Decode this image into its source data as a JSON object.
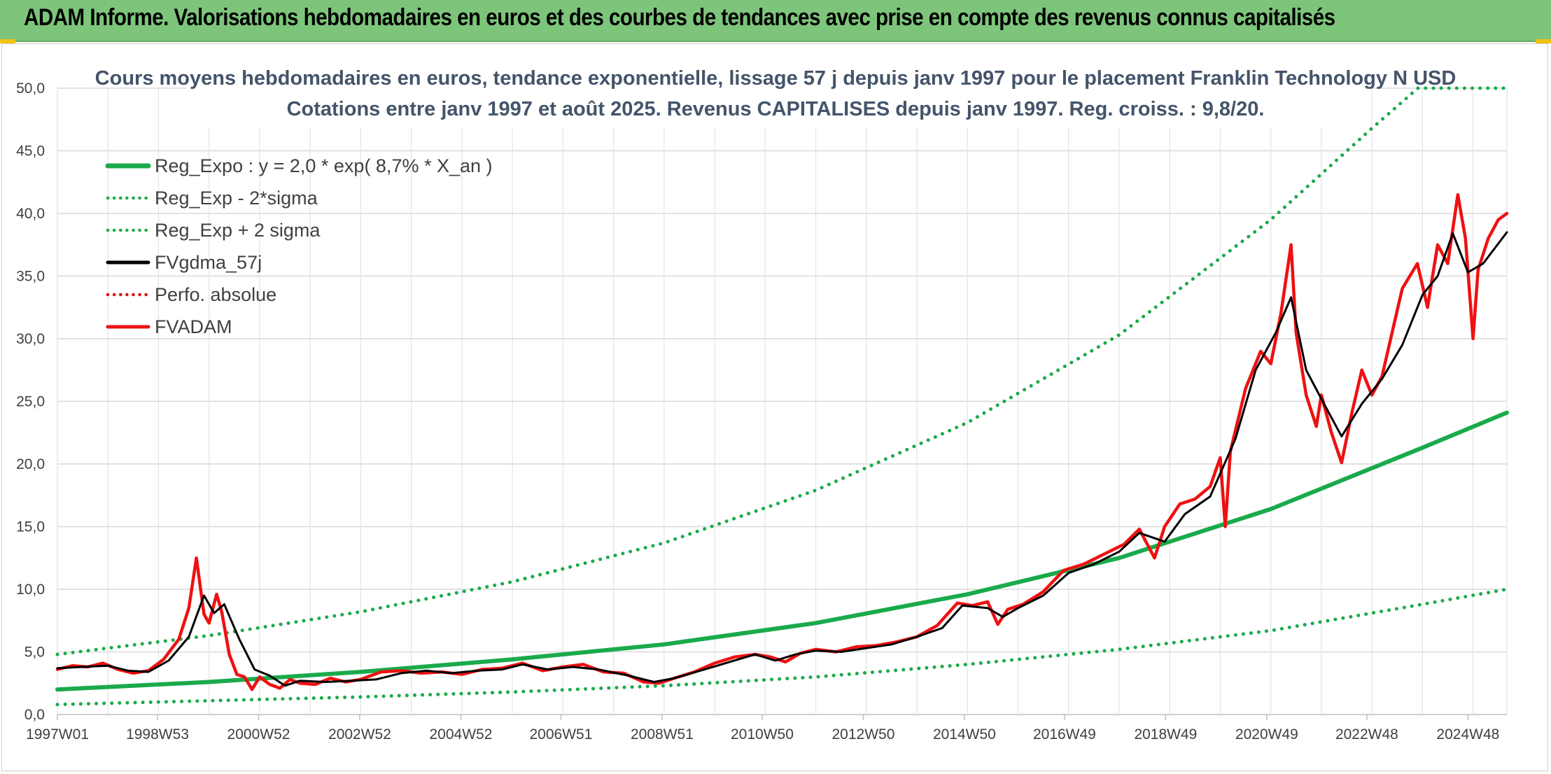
{
  "header": {
    "title": "ADAM Informe. Valorisations hebdomadaires en euros et des courbes de tendances avec prise en compte des revenus connus capitalisés"
  },
  "chart_data": {
    "type": "line",
    "title": "Cours moyens hebdomadaires en euros, tendance exponentielle, lissage 57 j depuis janv 1997 pour le placement Franklin Technology N USD",
    "subtitle": "Cotations entre janv 1997 et août 2025. Revenus CAPITALISES depuis janv 1997. Reg. croiss. : 9,8/20.",
    "xlabel": "",
    "ylabel": "",
    "ylim": [
      0,
      50
    ],
    "xlim": [
      1997.0,
      2025.67
    ],
    "y_ticks": [
      "0,0",
      "5,0",
      "10,0",
      "15,0",
      "20,0",
      "25,0",
      "30,0",
      "35,0",
      "40,0",
      "45,0",
      "50,0"
    ],
    "x_ticks": [
      {
        "label": "1997W01",
        "x": 1997.0
      },
      {
        "label": "1998W53",
        "x": 1998.98
      },
      {
        "label": "2000W52",
        "x": 2000.98
      },
      {
        "label": "2002W52",
        "x": 2002.98
      },
      {
        "label": "2004W52",
        "x": 2004.98
      },
      {
        "label": "2006W51",
        "x": 2006.96
      },
      {
        "label": "2008W51",
        "x": 2008.96
      },
      {
        "label": "2010W50",
        "x": 2010.94
      },
      {
        "label": "2012W50",
        "x": 2012.94
      },
      {
        "label": "2014W50",
        "x": 2014.94
      },
      {
        "label": "2016W49",
        "x": 2016.92
      },
      {
        "label": "2018W49",
        "x": 2018.92
      },
      {
        "label": "2020W49",
        "x": 2020.92
      },
      {
        "label": "2022W48",
        "x": 2022.9
      },
      {
        "label": "2024W48",
        "x": 2024.9
      }
    ],
    "grid": true,
    "legend_position": "top-left",
    "series": [
      {
        "name": "Reg_Expo : y = 2,0 * exp( 8,7% *  X_an )",
        "key": "reg",
        "color": "#1aaa4b",
        "style": "solid",
        "x": [
          1997.0,
          2000.0,
          2003.0,
          2006.0,
          2009.0,
          2012.0,
          2015.0,
          2018.0,
          2021.0,
          2024.0,
          2025.67
        ],
        "values": [
          2.0,
          2.6,
          3.4,
          4.4,
          5.6,
          7.3,
          9.6,
          12.5,
          16.4,
          21.3,
          24.1
        ]
      },
      {
        "name": "Reg_Exp - 2*sigma",
        "key": "reg_lo",
        "color": "#1aaa4b",
        "style": "dotted",
        "x": [
          1997.0,
          2000.0,
          2003.0,
          2006.0,
          2009.0,
          2012.0,
          2015.0,
          2018.0,
          2021.0,
          2024.0,
          2025.67
        ],
        "values": [
          0.8,
          1.1,
          1.4,
          1.8,
          2.3,
          3.0,
          4.0,
          5.2,
          6.7,
          8.8,
          10.0
        ]
      },
      {
        "name": "Reg_Exp + 2 sigma",
        "key": "reg_hi",
        "color": "#1aaa4b",
        "style": "dotted",
        "x": [
          1997.0,
          2000.0,
          2003.0,
          2006.0,
          2009.0,
          2012.0,
          2015.0,
          2018.0,
          2021.0,
          2023.0,
          2023.91,
          2025.67
        ],
        "values": [
          4.8,
          6.3,
          8.2,
          10.6,
          13.7,
          17.9,
          23.3,
          30.3,
          39.5,
          46.8,
          50.0,
          50.0
        ]
      },
      {
        "name": "FVgdma_57j",
        "key": "gdma",
        "color": "#000000",
        "style": "solid",
        "x": [
          1997.0,
          1997.5,
          1998.0,
          1998.4,
          1998.8,
          1999.2,
          1999.6,
          1999.9,
          2000.1,
          2000.3,
          2000.6,
          2000.9,
          2001.2,
          2001.5,
          2001.8,
          2002.3,
          2002.8,
          2003.3,
          2003.8,
          2004.3,
          2004.8,
          2005.3,
          2005.8,
          2006.2,
          2006.7,
          2007.2,
          2007.7,
          2008.3,
          2008.8,
          2009.2,
          2009.8,
          2010.3,
          2010.8,
          2011.2,
          2011.6,
          2012.0,
          2012.5,
          2013.0,
          2013.5,
          2014.0,
          2014.5,
          2014.9,
          2015.4,
          2015.7,
          2016.0,
          2016.5,
          2017.0,
          2017.5,
          2018.0,
          2018.4,
          2018.9,
          2019.3,
          2019.8,
          2020.3,
          2020.7,
          2021.1,
          2021.4,
          2021.7,
          2022.0,
          2022.4,
          2022.8,
          2023.2,
          2023.6,
          2024.0,
          2024.3,
          2024.6,
          2024.9,
          2025.2,
          2025.67
        ],
        "values": [
          3.7,
          3.8,
          3.9,
          3.5,
          3.4,
          4.3,
          6.2,
          9.5,
          8.1,
          8.8,
          6.0,
          3.6,
          3.1,
          2.3,
          2.7,
          2.6,
          2.7,
          2.8,
          3.3,
          3.5,
          3.3,
          3.5,
          3.6,
          4.0,
          3.6,
          3.8,
          3.6,
          3.1,
          2.6,
          2.9,
          3.6,
          4.2,
          4.8,
          4.3,
          4.8,
          5.1,
          5.0,
          5.3,
          5.6,
          6.2,
          6.9,
          8.7,
          8.5,
          7.8,
          8.5,
          9.5,
          11.3,
          12.0,
          13.0,
          14.5,
          13.8,
          16.0,
          17.4,
          22.0,
          27.5,
          30.5,
          33.3,
          27.5,
          25.2,
          22.2,
          24.8,
          26.8,
          29.5,
          33.5,
          35.0,
          38.4,
          35.3,
          36.0,
          38.5
        ]
      },
      {
        "name": "Perfo. absolue",
        "key": "perfo",
        "color": "#e01010",
        "style": "dotted",
        "x": [],
        "values": []
      },
      {
        "name": "FVADAM",
        "key": "adam",
        "color": "#ee1111",
        "style": "solid",
        "x": [
          1997.0,
          1997.3,
          1997.6,
          1997.9,
          1998.2,
          1998.5,
          1998.8,
          1999.1,
          1999.4,
          1999.6,
          1999.75,
          1999.9,
          2000.0,
          2000.15,
          2000.25,
          2000.4,
          2000.55,
          2000.7,
          2000.85,
          2001.0,
          2001.2,
          2001.4,
          2001.6,
          2001.8,
          2002.1,
          2002.4,
          2002.7,
          2003.0,
          2003.4,
          2003.8,
          2004.2,
          2004.6,
          2005.0,
          2005.4,
          2005.8,
          2006.2,
          2006.6,
          2007.0,
          2007.4,
          2007.8,
          2008.2,
          2008.6,
          2008.9,
          2009.2,
          2009.6,
          2010.0,
          2010.4,
          2010.8,
          2011.1,
          2011.4,
          2011.7,
          2012.0,
          2012.4,
          2012.8,
          2013.2,
          2013.6,
          2014.0,
          2014.4,
          2014.8,
          2015.1,
          2015.4,
          2015.6,
          2015.8,
          2016.1,
          2016.5,
          2016.9,
          2017.3,
          2017.7,
          2018.1,
          2018.4,
          2018.7,
          2018.9,
          2019.2,
          2019.5,
          2019.8,
          2020.0,
          2020.1,
          2020.2,
          2020.5,
          2020.8,
          2021.0,
          2021.2,
          2021.4,
          2021.5,
          2021.7,
          2021.9,
          2022.0,
          2022.2,
          2022.4,
          2022.6,
          2022.8,
          2023.0,
          2023.2,
          2023.4,
          2023.6,
          2023.9,
          2024.1,
          2024.3,
          2024.5,
          2024.7,
          2024.85,
          2025.0,
          2025.1,
          2025.3,
          2025.5,
          2025.67
        ],
        "values": [
          3.6,
          3.9,
          3.8,
          4.1,
          3.6,
          3.3,
          3.5,
          4.4,
          6.0,
          8.5,
          12.5,
          8.0,
          7.3,
          9.6,
          8.2,
          4.8,
          3.2,
          3.0,
          2.0,
          3.0,
          2.4,
          2.1,
          2.8,
          2.5,
          2.4,
          2.9,
          2.6,
          2.8,
          3.4,
          3.5,
          3.3,
          3.4,
          3.2,
          3.6,
          3.7,
          4.1,
          3.5,
          3.8,
          4.0,
          3.4,
          3.3,
          2.6,
          2.5,
          2.9,
          3.4,
          4.1,
          4.6,
          4.8,
          4.6,
          4.2,
          4.9,
          5.2,
          5.0,
          5.4,
          5.5,
          5.8,
          6.2,
          7.1,
          8.9,
          8.7,
          9.0,
          7.2,
          8.4,
          8.8,
          9.8,
          11.5,
          12.0,
          12.8,
          13.6,
          14.8,
          12.5,
          15.0,
          16.8,
          17.2,
          18.2,
          20.5,
          15.0,
          21.0,
          26.0,
          29.0,
          28.0,
          32.0,
          37.5,
          30.5,
          25.5,
          23.0,
          25.5,
          22.5,
          20.1,
          24.0,
          27.5,
          25.5,
          27.0,
          30.5,
          34.0,
          36.0,
          32.5,
          37.5,
          36.0,
          41.5,
          38.0,
          30.0,
          35.5,
          38.0,
          39.5,
          40.0
        ]
      }
    ]
  }
}
